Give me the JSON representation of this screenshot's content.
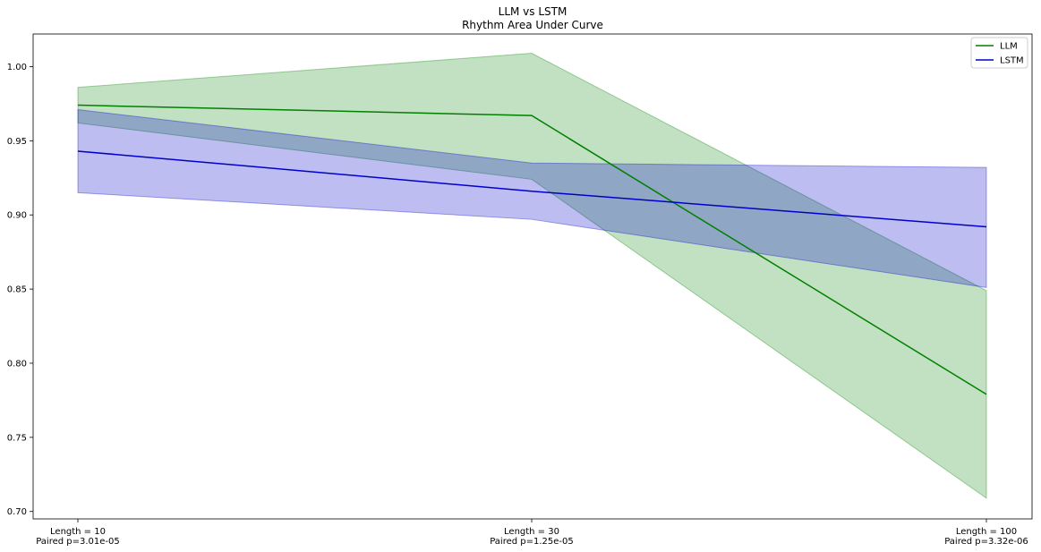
{
  "chart_data": {
    "type": "line",
    "title": "LLM vs LSTM",
    "subtitle": "Rhythm Area Under Curve",
    "xlabel": "",
    "ylabel": "",
    "categories": [
      [
        "Length = 10",
        "Paired p=3.01e-05"
      ],
      [
        "Length = 30",
        "Paired p=1.25e-05"
      ],
      [
        "Length = 100",
        "Paired p=3.32e-06"
      ]
    ],
    "ylim": [
      0.695,
      1.022
    ],
    "yticks": [
      0.7,
      0.75,
      0.8,
      0.85,
      0.9,
      0.95,
      1.0
    ],
    "grid": false,
    "legend_position": "top-right",
    "series": [
      {
        "name": "LLM",
        "color": "#008000",
        "values": [
          0.974,
          0.967,
          0.779
        ],
        "lower": [
          0.962,
          0.924,
          0.709
        ],
        "upper": [
          0.986,
          1.009,
          0.849
        ]
      },
      {
        "name": "LSTM",
        "color": "#0000cc",
        "values": [
          0.943,
          0.916,
          0.892
        ],
        "lower": [
          0.915,
          0.897,
          0.851
        ],
        "upper": [
          0.971,
          0.935,
          0.932
        ]
      }
    ]
  }
}
